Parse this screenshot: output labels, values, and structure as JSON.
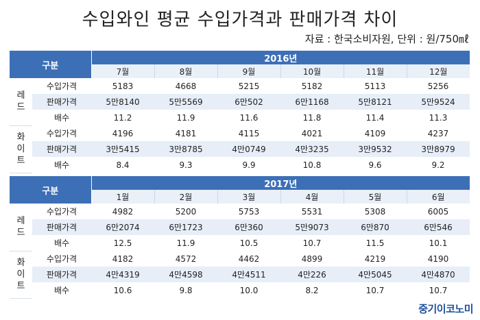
{
  "title": "수입와인 평균 수입가격과 판매가격 차이",
  "source": "자료 : 한국소비자원, 단위 : 원/750㎖",
  "brand": "중기이코노미",
  "tables": [
    {
      "header_label": "구분",
      "year": "2016년",
      "months": [
        "7월",
        "8월",
        "9월",
        "10월",
        "11월",
        "12월"
      ],
      "groups": [
        {
          "name": "레드",
          "rows": [
            {
              "label": "수입가격",
              "values": [
                "5183",
                "4668",
                "5215",
                "5182",
                "5113",
                "5256"
              ]
            },
            {
              "label": "판매가격",
              "values": [
                "5만8140",
                "5만5569",
                "6만502",
                "6만1168",
                "5만8121",
                "5만9524"
              ]
            },
            {
              "label": "배수",
              "values": [
                "11.2",
                "11.9",
                "11.6",
                "11.8",
                "11.4",
                "11.3"
              ]
            }
          ]
        },
        {
          "name": "화이트",
          "rows": [
            {
              "label": "수입가격",
              "values": [
                "4196",
                "4181",
                "4115",
                "4021",
                "4109",
                "4237"
              ]
            },
            {
              "label": "판매가격",
              "values": [
                "3만5415",
                "3만8785",
                "4만0749",
                "4만3235",
                "3만9532",
                "3만8979"
              ]
            },
            {
              "label": "배수",
              "values": [
                "8.4",
                "9.3",
                "9.9",
                "10.8",
                "9.6",
                "9.2"
              ]
            }
          ]
        }
      ]
    },
    {
      "header_label": "구분",
      "year": "2017년",
      "months": [
        "1월",
        "2월",
        "3월",
        "4월",
        "5월",
        "6월"
      ],
      "groups": [
        {
          "name": "레드",
          "rows": [
            {
              "label": "수입가격",
              "values": [
                "4982",
                "5200",
                "5753",
                "5531",
                "5308",
                "6005"
              ]
            },
            {
              "label": "판매가격",
              "values": [
                "6만2074",
                "6만1723",
                "6만360",
                "5만9073",
                "6만870",
                "6만546"
              ]
            },
            {
              "label": "배수",
              "values": [
                "12.5",
                "11.9",
                "10.5",
                "10.7",
                "11.5",
                "10.1"
              ]
            }
          ]
        },
        {
          "name": "화이트",
          "rows": [
            {
              "label": "수입가격",
              "values": [
                "4182",
                "4572",
                "4462",
                "4899",
                "4219",
                "4190"
              ]
            },
            {
              "label": "판매가격",
              "values": [
                "4만4319",
                "4만4598",
                "4만4511",
                "4만226",
                "4만5045",
                "4만4870"
              ]
            },
            {
              "label": "배수",
              "values": [
                "10.6",
                "9.8",
                "10.0",
                "8.2",
                "10.7",
                "10.7"
              ]
            }
          ]
        }
      ]
    }
  ]
}
